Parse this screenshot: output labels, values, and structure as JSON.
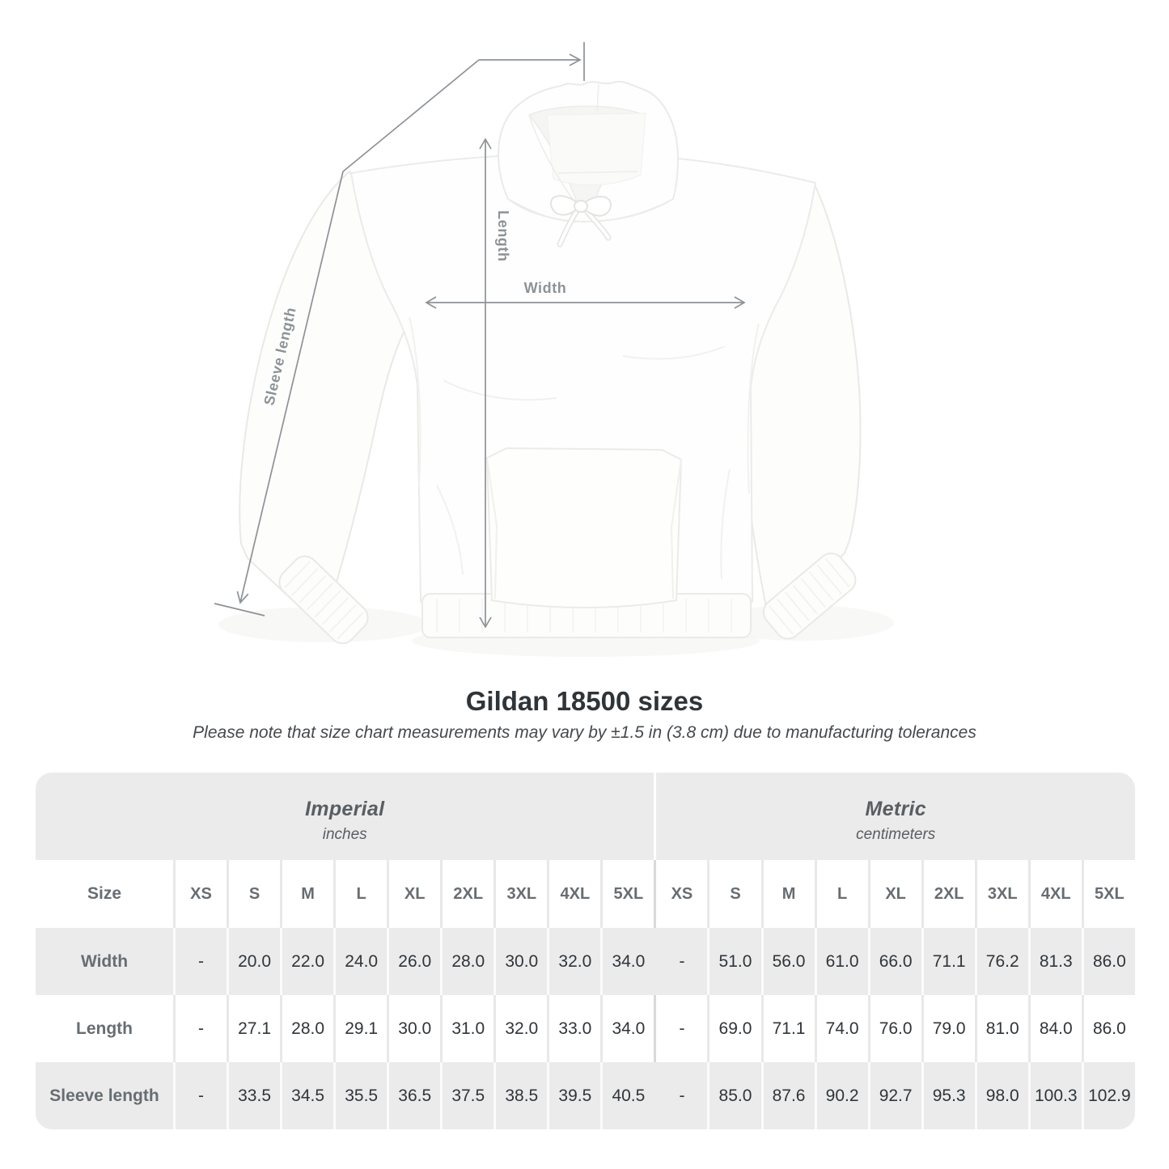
{
  "figure": {
    "measure_labels": {
      "length": "Length",
      "width": "Width",
      "sleeve": "Sleeve length"
    }
  },
  "chart_data": {
    "type": "table",
    "title": "Gildan 18500 sizes",
    "note": "Please note that size chart measurements may vary by ±1.5 in (3.8 cm) due to manufacturing tolerances",
    "sections": [
      {
        "label": "Imperial",
        "units": "inches"
      },
      {
        "label": "Metric",
        "units": "centimeters"
      }
    ],
    "size_label": "Size",
    "sizes": [
      "XS",
      "S",
      "M",
      "L",
      "XL",
      "2XL",
      "3XL",
      "4XL",
      "5XL"
    ],
    "rows": [
      {
        "label": "Width",
        "imperial": [
          "-",
          "20.0",
          "22.0",
          "24.0",
          "26.0",
          "28.0",
          "30.0",
          "32.0",
          "34.0"
        ],
        "metric": [
          "-",
          "51.0",
          "56.0",
          "61.0",
          "66.0",
          "71.1",
          "76.2",
          "81.3",
          "86.0"
        ]
      },
      {
        "label": "Length",
        "imperial": [
          "-",
          "27.1",
          "28.0",
          "29.1",
          "30.0",
          "31.0",
          "32.0",
          "33.0",
          "34.0"
        ],
        "metric": [
          "-",
          "69.0",
          "71.1",
          "74.0",
          "76.0",
          "79.0",
          "81.0",
          "84.0",
          "86.0"
        ]
      },
      {
        "label": "Sleeve length",
        "imperial": [
          "-",
          "33.5",
          "34.5",
          "35.5",
          "36.5",
          "37.5",
          "38.5",
          "39.5",
          "40.5"
        ],
        "metric": [
          "-",
          "85.0",
          "87.6",
          "90.2",
          "92.7",
          "95.3",
          "98.0",
          "100.3",
          "102.9"
        ]
      }
    ]
  },
  "colors": {
    "row_gray": "#ebebeb",
    "measure_line": "#8d9297",
    "header_text": "#676d72",
    "value_text": "#30353a",
    "title_text": "#2f3438"
  }
}
